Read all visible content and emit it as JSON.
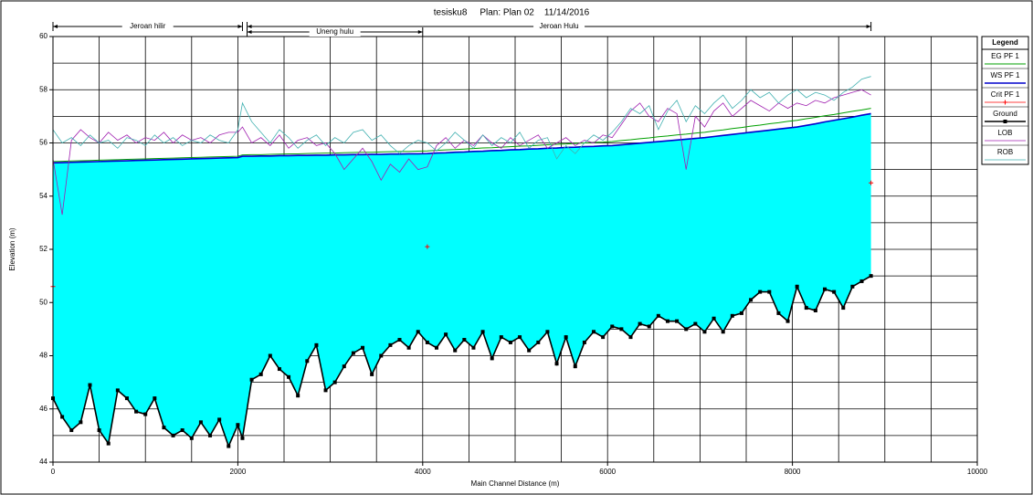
{
  "chart_data": {
    "type": "line",
    "title": "tesisku8     Plan: Plan 02    11/14/2016",
    "x_label": "Main Channel Distance (m)",
    "y_label": "Elevation (m)",
    "legend_title": "Legend",
    "legend_position": "right",
    "xlim": [
      0,
      10000
    ],
    "ylim": [
      44,
      60
    ],
    "xticks": [
      0,
      2000,
      4000,
      6000,
      8000,
      10000
    ],
    "yticks": [
      44,
      46,
      48,
      50,
      52,
      54,
      56,
      58,
      60
    ],
    "xgrid": [
      500,
      1000,
      1500,
      2000,
      2500,
      3000,
      3500,
      4000,
      4500,
      5000,
      5500,
      6000,
      6500,
      7000,
      7500,
      8000,
      8500,
      9000,
      9500
    ],
    "ygrid": [
      45,
      46,
      47,
      48,
      49,
      50,
      51,
      52,
      53,
      54,
      55,
      56,
      57,
      58,
      59
    ],
    "reaches": [
      {
        "label": "Jeroan hilir",
        "range": [
          0,
          2050
        ],
        "row": 0
      },
      {
        "label": "Uneng hulu",
        "range": [
          2100,
          4000
        ],
        "row": 1
      },
      {
        "label": "Jeroan Hulu",
        "range": [
          2100,
          8850
        ],
        "row": 0
      }
    ],
    "x": [
      0,
      100,
      200,
      300,
      400,
      500,
      600,
      700,
      800,
      900,
      1000,
      1100,
      1200,
      1300,
      1400,
      1500,
      1600,
      1700,
      1800,
      1900,
      2000,
      2050,
      2150,
      2250,
      2350,
      2450,
      2550,
      2650,
      2750,
      2850,
      2950,
      3050,
      3150,
      3250,
      3350,
      3450,
      3550,
      3650,
      3750,
      3850,
      3950,
      4050,
      4150,
      4250,
      4350,
      4450,
      4550,
      4650,
      4750,
      4850,
      4950,
      5050,
      5150,
      5250,
      5350,
      5450,
      5550,
      5650,
      5750,
      5850,
      5950,
      6050,
      6150,
      6250,
      6350,
      6450,
      6550,
      6650,
      6750,
      6850,
      6950,
      7050,
      7150,
      7250,
      7350,
      7450,
      7550,
      7650,
      7750,
      7850,
      7950,
      8050,
      8150,
      8250,
      8350,
      8450,
      8550,
      8650,
      8750,
      8850
    ],
    "series": [
      {
        "name": "EG  PF 1",
        "color": "#00a000",
        "width": 1,
        "values": [
          55.3,
          55.31,
          55.32,
          55.33,
          55.34,
          55.35,
          55.36,
          55.37,
          55.38,
          55.39,
          55.4,
          55.41,
          55.42,
          55.43,
          55.44,
          55.45,
          55.46,
          55.47,
          55.48,
          55.49,
          55.5,
          55.55,
          55.56,
          55.56,
          55.57,
          55.58,
          55.59,
          55.59,
          55.6,
          55.61,
          55.62,
          55.62,
          55.63,
          55.64,
          55.65,
          55.65,
          55.66,
          55.67,
          55.68,
          55.68,
          55.69,
          55.7,
          55.72,
          55.74,
          55.75,
          55.77,
          55.79,
          55.81,
          55.82,
          55.84,
          55.86,
          55.88,
          55.89,
          55.91,
          55.93,
          55.95,
          55.96,
          55.98,
          56.0,
          56.02,
          56.03,
          56.05,
          56.09,
          56.12,
          56.16,
          56.19,
          56.23,
          56.26,
          56.3,
          56.33,
          56.37,
          56.4,
          56.45,
          56.49,
          56.54,
          56.58,
          56.63,
          56.67,
          56.72,
          56.76,
          56.81,
          56.85,
          56.91,
          56.96,
          57.02,
          57.07,
          57.13,
          57.19,
          57.24,
          57.3
        ]
      },
      {
        "name": "WS  PF 1",
        "color": "#0000cc",
        "width": 1.6,
        "fill": "#00ffff",
        "fill_to_series": 3,
        "values": [
          55.25,
          55.26,
          55.27,
          55.28,
          55.29,
          55.3,
          55.31,
          55.32,
          55.33,
          55.34,
          55.35,
          55.36,
          55.37,
          55.38,
          55.39,
          55.4,
          55.41,
          55.42,
          55.43,
          55.44,
          55.45,
          55.5,
          55.5,
          55.51,
          55.51,
          55.52,
          55.52,
          55.53,
          55.53,
          55.54,
          55.54,
          55.55,
          55.55,
          55.56,
          55.56,
          55.57,
          55.57,
          55.58,
          55.58,
          55.59,
          55.59,
          55.6,
          55.62,
          55.63,
          55.65,
          55.66,
          55.68,
          55.69,
          55.71,
          55.72,
          55.74,
          55.75,
          55.77,
          55.78,
          55.8,
          55.81,
          55.83,
          55.84,
          55.86,
          55.87,
          55.89,
          55.9,
          55.93,
          55.96,
          55.99,
          56.02,
          56.05,
          56.08,
          56.11,
          56.14,
          56.17,
          56.2,
          56.24,
          56.28,
          56.32,
          56.36,
          56.4,
          56.44,
          56.48,
          56.52,
          56.56,
          56.6,
          56.66,
          56.72,
          56.79,
          56.85,
          56.91,
          56.97,
          57.04,
          57.1
        ]
      },
      {
        "name": "Crit  PF 1",
        "color": "#ff0000",
        "width": 0,
        "marker": "plus",
        "x": [
          0,
          4050,
          8850
        ],
        "values": [
          50.6,
          52.1,
          54.5
        ]
      },
      {
        "name": "Ground",
        "color": "#000000",
        "width": 1.6,
        "marker": "square",
        "values": [
          46.4,
          45.7,
          45.2,
          45.5,
          46.9,
          45.2,
          44.7,
          46.7,
          46.4,
          45.9,
          45.8,
          46.4,
          45.3,
          45.0,
          45.2,
          44.9,
          45.5,
          45.0,
          45.6,
          44.6,
          45.4,
          44.9,
          47.1,
          47.3,
          48.0,
          47.5,
          47.2,
          46.5,
          47.8,
          48.4,
          46.7,
          47.0,
          47.6,
          48.1,
          48.3,
          47.3,
          48.0,
          48.4,
          48.6,
          48.3,
          48.9,
          48.5,
          48.3,
          48.8,
          48.2,
          48.6,
          48.3,
          48.9,
          47.9,
          48.7,
          48.5,
          48.7,
          48.2,
          48.5,
          48.9,
          47.7,
          48.7,
          47.6,
          48.5,
          48.9,
          48.7,
          49.1,
          49.0,
          48.7,
          49.2,
          49.1,
          49.5,
          49.3,
          49.3,
          49.0,
          49.2,
          48.9,
          49.4,
          48.9,
          49.5,
          49.6,
          50.1,
          50.4,
          50.4,
          49.6,
          49.3,
          50.6,
          49.8,
          49.7,
          50.5,
          50.4,
          49.8,
          50.6,
          50.8,
          51.0
        ]
      },
      {
        "name": "LOB",
        "color": "#a020b0",
        "width": 0.8,
        "values": [
          55.4,
          53.3,
          56.1,
          56.5,
          56.2,
          56.0,
          56.4,
          56.1,
          56.3,
          56.0,
          56.2,
          56.1,
          56.4,
          56.0,
          56.3,
          56.1,
          56.2,
          56.0,
          56.3,
          56.4,
          56.4,
          56.6,
          56.0,
          56.2,
          55.9,
          56.3,
          55.8,
          56.1,
          56.2,
          55.9,
          56.0,
          55.6,
          55.0,
          55.4,
          55.8,
          55.3,
          54.6,
          55.2,
          54.9,
          55.4,
          55.0,
          55.1,
          55.9,
          56.2,
          55.8,
          56.1,
          55.9,
          56.3,
          56.0,
          55.8,
          56.2,
          55.9,
          56.1,
          56.3,
          55.8,
          56.0,
          56.2,
          55.9,
          56.1,
          56.0,
          56.3,
          56.2,
          56.7,
          57.2,
          57.5,
          57.0,
          56.8,
          57.3,
          57.1,
          55.0,
          57.0,
          56.6,
          57.2,
          57.5,
          57.0,
          57.3,
          57.6,
          57.4,
          57.2,
          57.5,
          57.3,
          57.5,
          57.4,
          57.6,
          57.5,
          57.7,
          57.8,
          57.9,
          58.0,
          57.8
        ]
      },
      {
        "name": "ROB",
        "color": "#40b0b0",
        "width": 0.8,
        "values": [
          56.5,
          56.0,
          56.2,
          55.9,
          56.3,
          56.0,
          56.1,
          55.8,
          56.2,
          56.1,
          55.9,
          56.3,
          56.0,
          56.2,
          55.9,
          56.1,
          56.0,
          56.3,
          56.1,
          56.0,
          56.5,
          57.5,
          56.8,
          56.4,
          56.0,
          56.5,
          56.2,
          55.8,
          56.1,
          56.3,
          55.9,
          56.2,
          56.0,
          56.4,
          56.5,
          56.1,
          56.3,
          55.9,
          55.6,
          55.9,
          56.1,
          56.0,
          55.7,
          56.0,
          56.4,
          56.1,
          55.8,
          56.3,
          55.9,
          56.2,
          56.0,
          56.4,
          55.8,
          56.1,
          56.2,
          55.4,
          55.9,
          55.6,
          56.0,
          56.3,
          56.1,
          56.4,
          56.8,
          57.3,
          57.1,
          57.4,
          56.5,
          57.2,
          57.6,
          56.8,
          57.4,
          57.1,
          57.5,
          57.8,
          57.3,
          57.6,
          58.0,
          57.7,
          57.9,
          57.5,
          57.8,
          58.0,
          57.7,
          57.9,
          57.8,
          57.6,
          57.9,
          58.1,
          58.4,
          58.5
        ]
      }
    ]
  }
}
